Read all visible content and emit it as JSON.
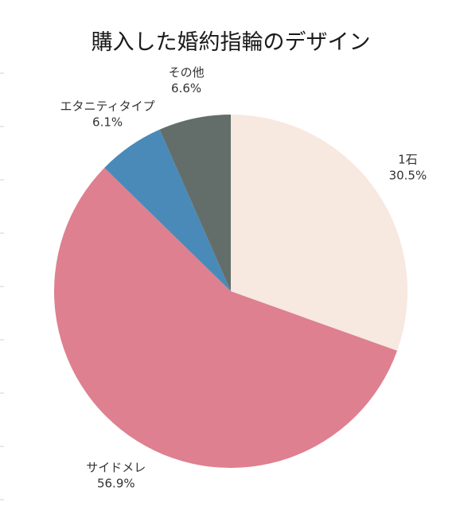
{
  "chart_data": {
    "type": "pie",
    "title": "購入した婚約指輪のデザイン",
    "categories": [
      "1石",
      "サイドメレ",
      "エタニティタイプ",
      "その他"
    ],
    "values": [
      30.5,
      56.9,
      6.1,
      6.6
    ],
    "value_labels": [
      "30.5%",
      "56.9%",
      "6.1%",
      "6.6%"
    ],
    "colors": [
      "#f7e8e0",
      "#de808f",
      "#4a8ab8",
      "#636e6a"
    ],
    "start": "12 o'clock",
    "direction": "clockwise",
    "legend": "none"
  }
}
